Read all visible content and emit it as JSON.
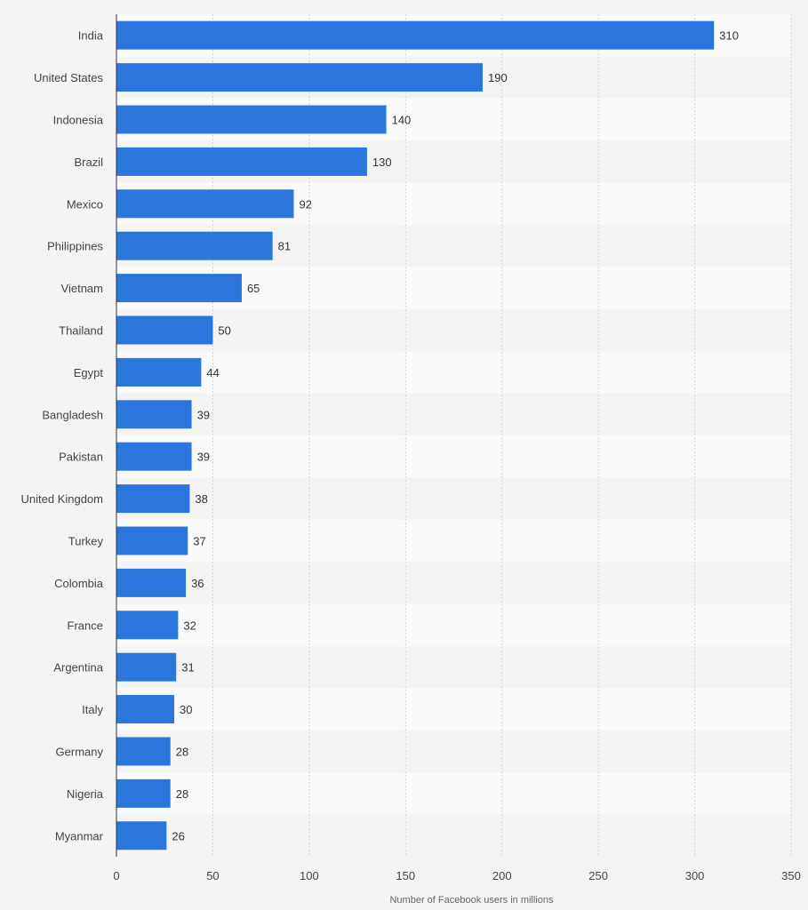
{
  "chart_data": {
    "type": "bar",
    "orientation": "horizontal",
    "categories": [
      "India",
      "United States",
      "Indonesia",
      "Brazil",
      "Mexico",
      "Philippines",
      "Vietnam",
      "Thailand",
      "Egypt",
      "Bangladesh",
      "Pakistan",
      "United Kingdom",
      "Turkey",
      "Colombia",
      "France",
      "Argentina",
      "Italy",
      "Germany",
      "Nigeria",
      "Myanmar"
    ],
    "values": [
      310,
      190,
      140,
      130,
      92,
      81,
      65,
      50,
      44,
      39,
      39,
      38,
      37,
      36,
      32,
      31,
      30,
      28,
      28,
      26
    ],
    "xlabel": "Number of Facebook users in millions",
    "ylabel": "",
    "xlim": [
      0,
      350
    ],
    "xticks": [
      0,
      50,
      100,
      150,
      200,
      250,
      300,
      350
    ],
    "grid": true,
    "colors": {
      "bar": "#2a76dd",
      "band_light": "#fafafa",
      "band_dark": "#f4f4f4",
      "grid": "#d6d6d6",
      "axis": "#333333"
    }
  }
}
